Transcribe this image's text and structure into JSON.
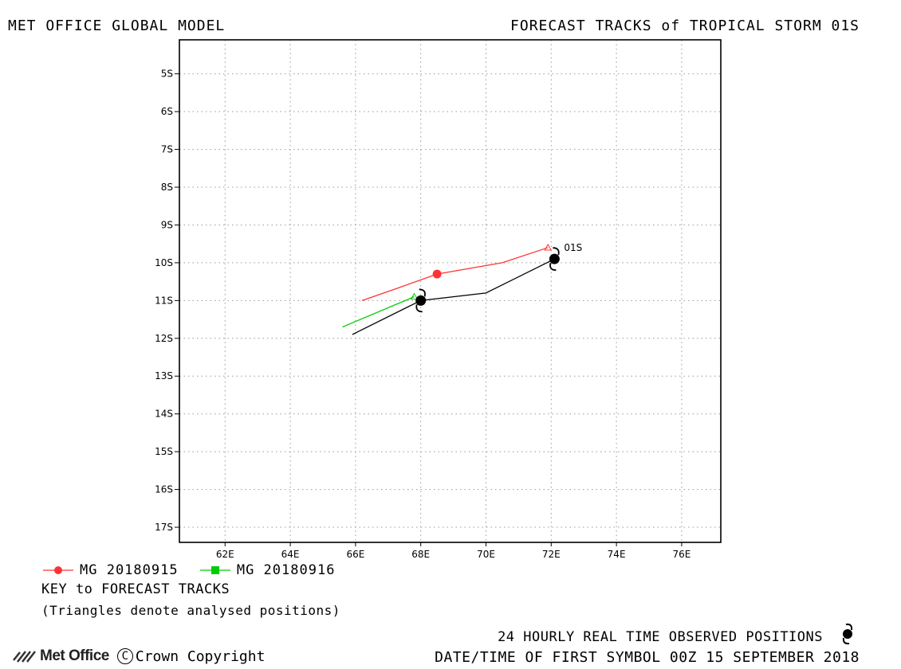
{
  "header": {
    "left_title": "MET OFFICE GLOBAL MODEL",
    "right_title": "FORECAST TRACKS of TROPICAL STORM 01S"
  },
  "chart_data": {
    "type": "line",
    "title": "FORECAST TRACKS of TROPICAL STORM 01S",
    "xlabel": "",
    "ylabel": "",
    "xlim": [
      60.6,
      77.2
    ],
    "ylim_south": [
      4.1,
      17.4
    ],
    "x_ticks": [
      "62E",
      "64E",
      "66E",
      "68E",
      "70E",
      "72E",
      "74E",
      "76E"
    ],
    "y_ticks": [
      "5S",
      "6S",
      "7S",
      "8S",
      "9S",
      "10S",
      "11S",
      "12S",
      "13S",
      "14S",
      "15S",
      "16S",
      "17S"
    ],
    "grid": true,
    "storm_label": "01S",
    "series": [
      {
        "name": "MG 20180915",
        "color": "#ff3333",
        "lon": [
          71.9,
          70.5,
          68.5,
          67.2,
          66.2
        ],
        "lat_south": [
          9.6,
          10.0,
          10.3,
          10.7,
          11.0
        ],
        "analysed_index": 0,
        "marker_index": 2,
        "marker": "circle"
      },
      {
        "name": "MG 20180916",
        "color": "#00cc00",
        "lon": [
          67.8,
          65.6
        ],
        "lat_south": [
          10.9,
          11.7
        ],
        "analysed_index": 0,
        "marker": "square"
      },
      {
        "name": "Observed",
        "color": "#000000",
        "lon": [
          72.1,
          70.0,
          68.0,
          65.9
        ],
        "lat_south": [
          9.9,
          10.8,
          11.0,
          11.9
        ],
        "storm_symbols": [
          0,
          2
        ]
      }
    ]
  },
  "legend": {
    "items": [
      {
        "label": "MG 20180915",
        "color": "#ff3333",
        "marker": "circle"
      },
      {
        "label": "MG 20180916",
        "color": "#00cc00",
        "marker": "square"
      }
    ],
    "key_title": "KEY to FORECAST TRACKS",
    "key_note": "(Triangles denote analysed positions)"
  },
  "footer": {
    "logo_text": "Met Office",
    "copyright": "Crown Copyright",
    "copyright_symbol": "C",
    "observed_text": "24 HOURLY REAL TIME OBSERVED POSITIONS",
    "date_text": "DATE/TIME OF FIRST SYMBOL 00Z 15 SEPTEMBER 2018"
  }
}
